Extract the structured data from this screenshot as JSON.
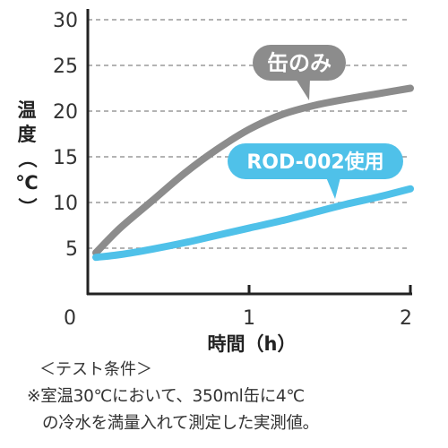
{
  "chart_data": {
    "type": "line",
    "xlabel": "時間（h）",
    "ylabel": "温度（℃）",
    "x_ticks": [
      "0",
      "1",
      "2"
    ],
    "y_ticks": [
      "5",
      "10",
      "15",
      "20",
      "25",
      "30"
    ],
    "xlim": [
      0,
      2
    ],
    "ylim": [
      0,
      30
    ],
    "grid": "horizontal dashed",
    "series": [
      {
        "name": "缶のみ",
        "color": "#8c8c8c",
        "x": [
          0.05,
          0.2,
          0.4,
          0.6,
          0.8,
          1.0,
          1.2,
          1.4,
          1.6,
          1.8,
          2.0
        ],
        "y": [
          4.5,
          7.2,
          10.2,
          13.2,
          15.8,
          18.0,
          19.6,
          20.6,
          21.3,
          21.9,
          22.5
        ]
      },
      {
        "name": "ROD-002使用",
        "color": "#4fc1e9",
        "x": [
          0.05,
          0.2,
          0.4,
          0.6,
          0.8,
          1.0,
          1.2,
          1.4,
          1.6,
          1.8,
          2.0
        ],
        "y": [
          4.0,
          4.3,
          4.9,
          5.6,
          6.4,
          7.2,
          8.0,
          8.9,
          9.8,
          10.6,
          11.5
        ]
      }
    ]
  },
  "conditions": {
    "heading": "＜テスト条件＞",
    "line1": "※室温30℃において、350ml缶に4℃",
    "line2": "の冷水を満量入れて測定した実測値。"
  }
}
